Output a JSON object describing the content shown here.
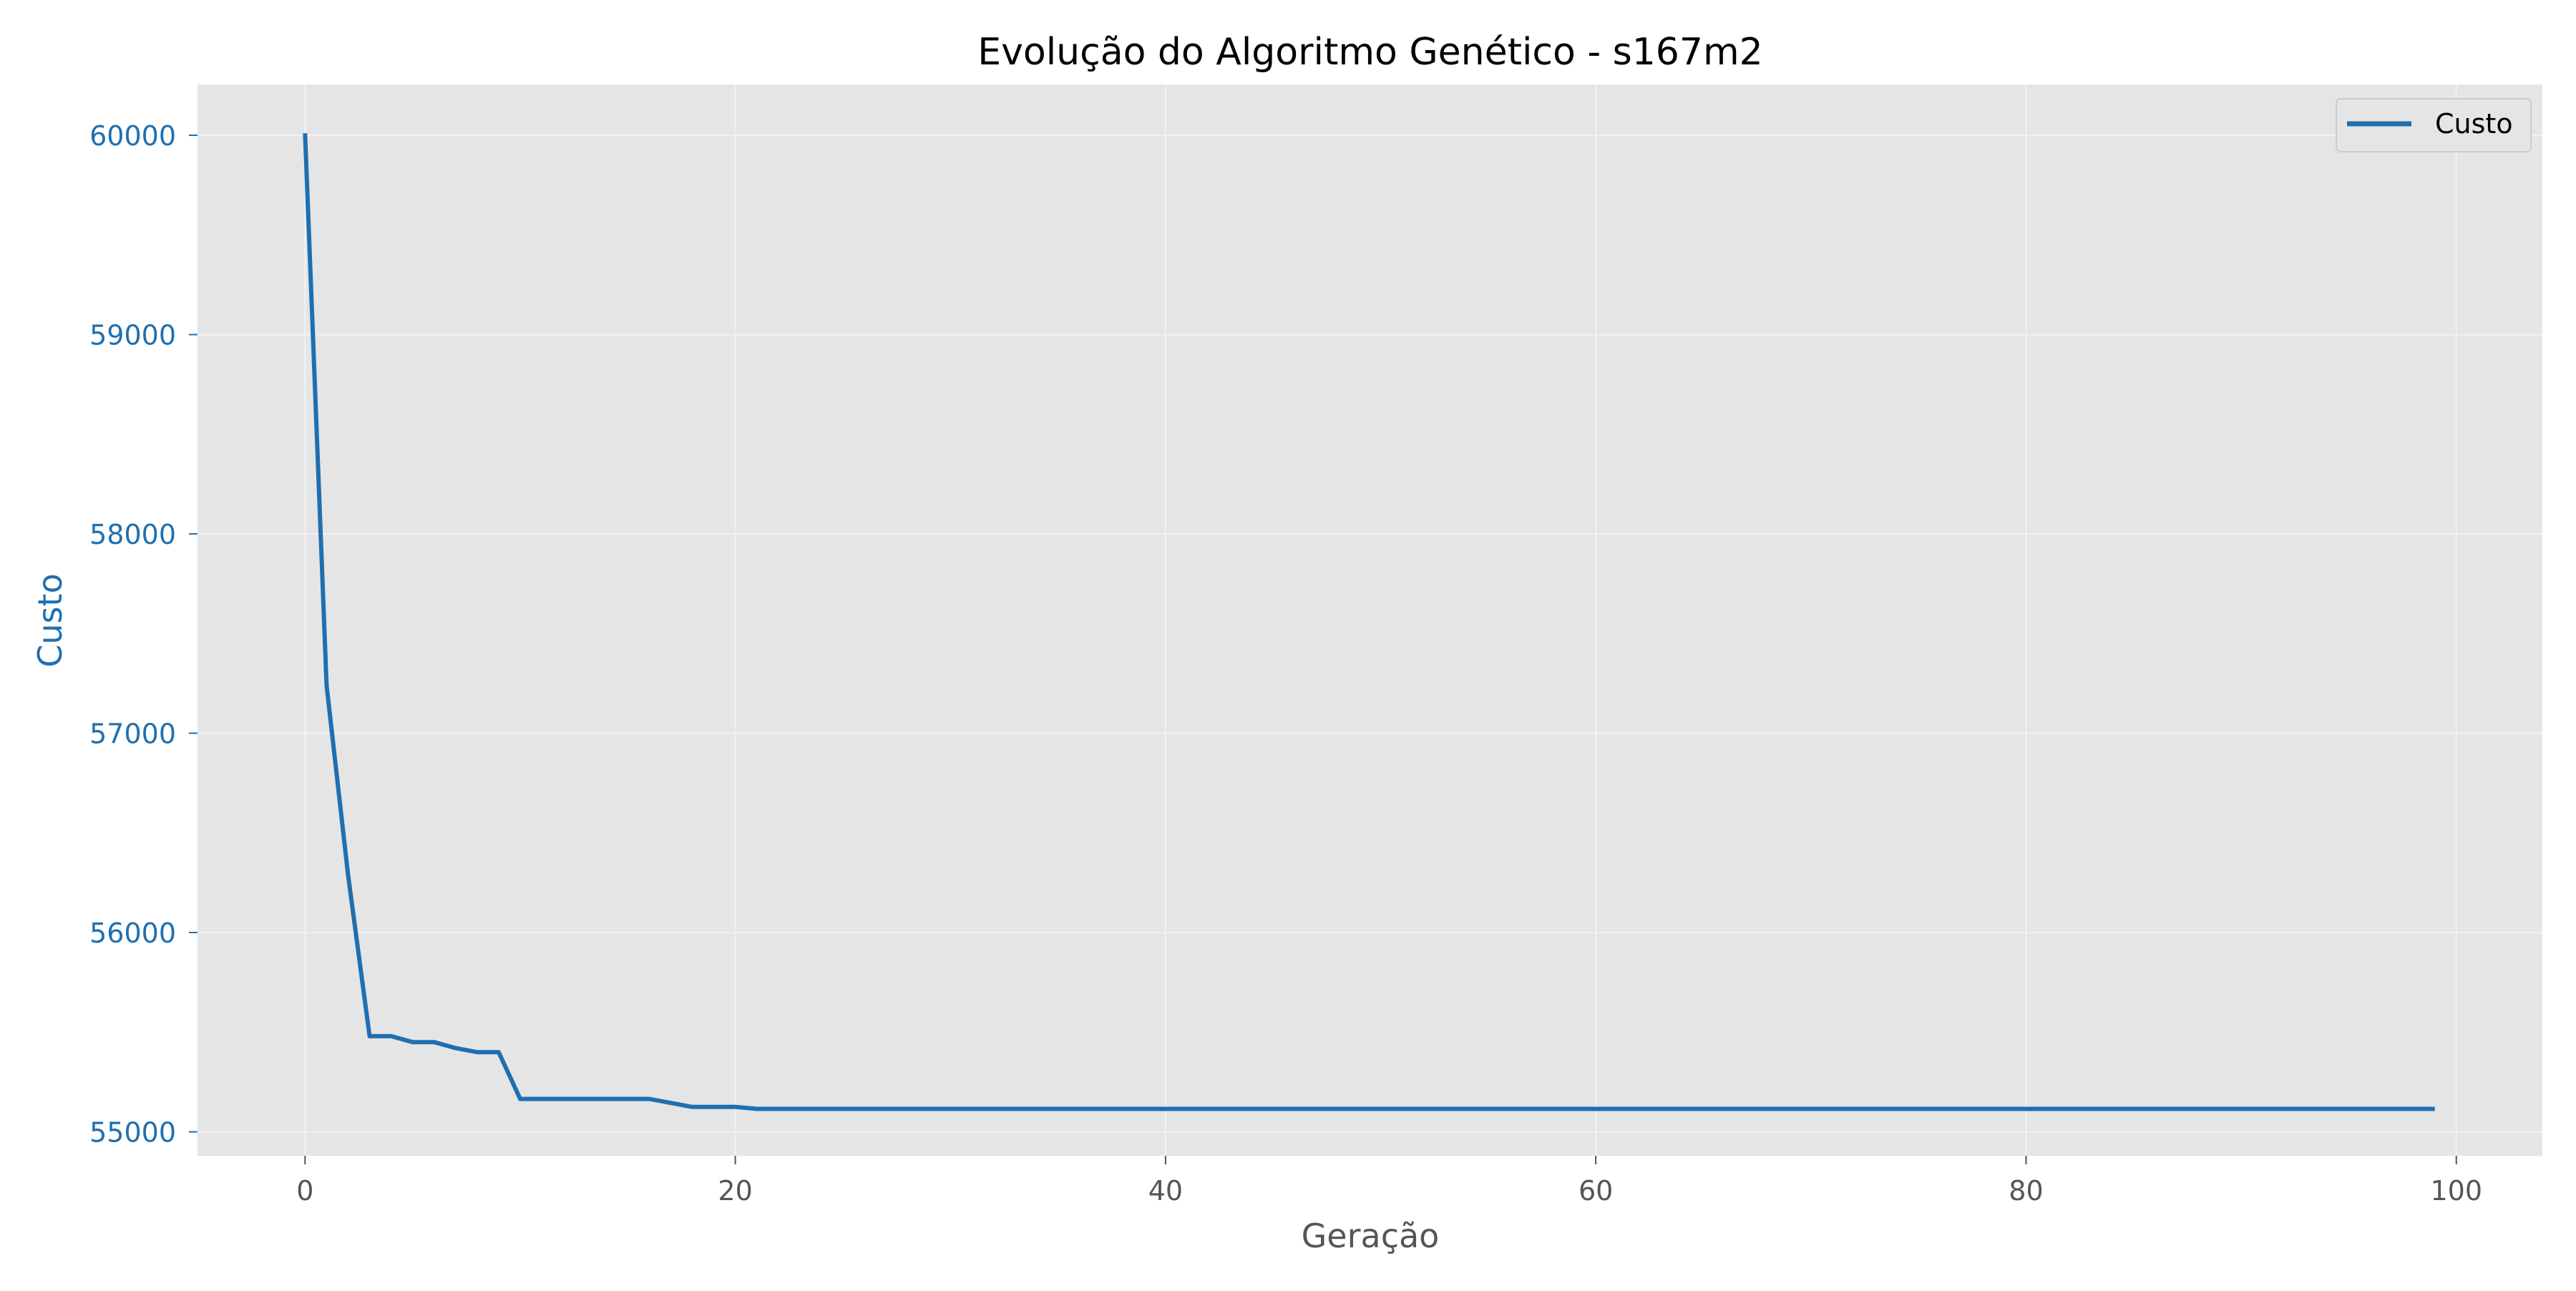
{
  "chart_data": {
    "type": "line",
    "title": "Evolução do Algoritmo Genético - s167m2",
    "xlabel": "Geração",
    "ylabel": "Custo",
    "xlim": [
      -5,
      104
    ],
    "ylim": [
      54880,
      60255
    ],
    "x_ticks": [
      0,
      20,
      40,
      60,
      80,
      100
    ],
    "y_ticks": [
      55000,
      56000,
      57000,
      58000,
      59000,
      60000
    ],
    "grid": true,
    "legend": {
      "position": "top-right",
      "entries": [
        "Custo"
      ]
    },
    "colors": {
      "plot_background": "#e5e5e5",
      "grid": "#f2f2f2",
      "series": "#1f6fb0",
      "y_axis_text": "#1f6fb0",
      "x_axis_text": "#555555"
    },
    "series": [
      {
        "name": "Custo",
        "x": [
          0,
          1,
          2,
          3,
          4,
          5,
          6,
          7,
          8,
          9,
          10,
          11,
          12,
          13,
          14,
          15,
          16,
          17,
          18,
          19,
          20,
          21,
          22,
          23,
          24,
          25,
          26,
          27,
          28,
          29,
          30,
          31,
          32,
          33,
          34,
          35,
          36,
          37,
          38,
          39,
          40,
          41,
          42,
          43,
          44,
          45,
          46,
          47,
          48,
          49,
          50,
          51,
          52,
          53,
          54,
          55,
          56,
          57,
          58,
          59,
          60,
          61,
          62,
          63,
          64,
          65,
          66,
          67,
          68,
          69,
          70,
          71,
          72,
          73,
          74,
          75,
          76,
          77,
          78,
          79,
          80,
          81,
          82,
          83,
          84,
          85,
          86,
          87,
          88,
          89,
          90,
          91,
          92,
          93,
          94,
          95,
          96,
          97,
          98,
          99
        ],
        "values": [
          60010,
          57240,
          56290,
          55480,
          55480,
          55450,
          55450,
          55420,
          55400,
          55400,
          55165,
          55165,
          55165,
          55165,
          55165,
          55165,
          55165,
          55145,
          55125,
          55125,
          55125,
          55115,
          55115,
          55115,
          55115,
          55115,
          55115,
          55115,
          55115,
          55115,
          55115,
          55115,
          55115,
          55115,
          55115,
          55115,
          55115,
          55115,
          55115,
          55115,
          55115,
          55115,
          55115,
          55115,
          55115,
          55115,
          55115,
          55115,
          55115,
          55115,
          55115,
          55115,
          55115,
          55115,
          55115,
          55115,
          55115,
          55115,
          55115,
          55115,
          55115,
          55115,
          55115,
          55115,
          55115,
          55115,
          55115,
          55115,
          55115,
          55115,
          55115,
          55115,
          55115,
          55115,
          55115,
          55115,
          55115,
          55115,
          55115,
          55115,
          55115,
          55115,
          55115,
          55115,
          55115,
          55115,
          55115,
          55115,
          55115,
          55115,
          55115,
          55115,
          55115,
          55115,
          55115,
          55115,
          55115,
          55115,
          55115,
          55115
        ]
      }
    ]
  }
}
